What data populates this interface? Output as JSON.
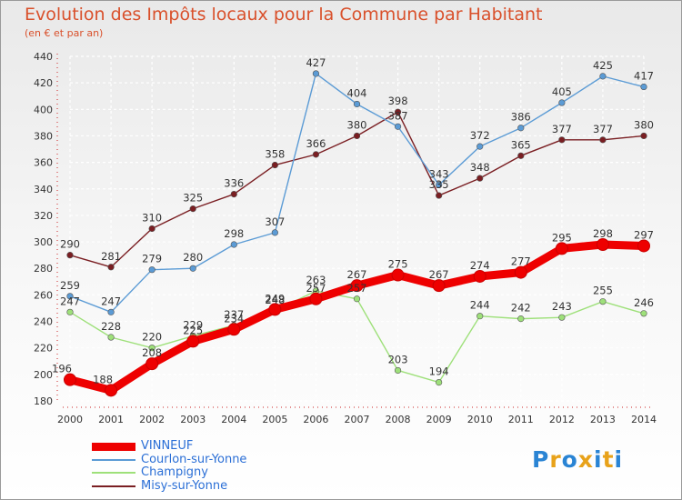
{
  "header": {
    "title": "Evolution des Impôts locaux pour la Commune par Habitant",
    "subtitle": "(en € et par an)"
  },
  "logo": {
    "text": "Proxiti",
    "colors": [
      "#2a84d4",
      "#e8a21a",
      "#2a84d4",
      "#e8a21a",
      "#2a84d4",
      "#e8a21a",
      "#2a84d4"
    ]
  },
  "chart_data": {
    "type": "line",
    "title": "Evolution des Impôts locaux pour la Commune par Habitant",
    "subtitle": "(en € et par an)",
    "x": [
      "2000",
      "2001",
      "2002",
      "2003",
      "2004",
      "2005",
      "2006",
      "2007",
      "2008",
      "2009",
      "2010",
      "2011",
      "2012",
      "2013",
      "2014"
    ],
    "ylim": [
      180,
      440
    ],
    "yticks": [
      180,
      200,
      220,
      240,
      260,
      280,
      300,
      320,
      340,
      360,
      380,
      400,
      420,
      440
    ],
    "grid": true,
    "legend_position": "bottom-left",
    "series": [
      {
        "name": "VINNEUF",
        "color": "#ee0000",
        "values": [
          196,
          188,
          208,
          225,
          234,
          249,
          257,
          267,
          275,
          267,
          274,
          277,
          295,
          298,
          297
        ]
      },
      {
        "name": "Courlon-sur-Yonne",
        "color": "#5b9bd5",
        "values": [
          259,
          247,
          279,
          280,
          298,
          307,
          427,
          404,
          387,
          343,
          372,
          386,
          405,
          425,
          417
        ]
      },
      {
        "name": "Champigny",
        "color": "#9ee07a",
        "values": [
          247,
          228,
          220,
          229,
          237,
          248,
          263,
          257,
          203,
          194,
          244,
          242,
          243,
          255,
          246
        ]
      },
      {
        "name": "Misy-sur-Yonne",
        "color": "#7a1e22",
        "values": [
          290,
          281,
          310,
          325,
          336,
          358,
          366,
          380,
          398,
          335,
          348,
          365,
          377,
          377,
          380
        ]
      }
    ]
  }
}
